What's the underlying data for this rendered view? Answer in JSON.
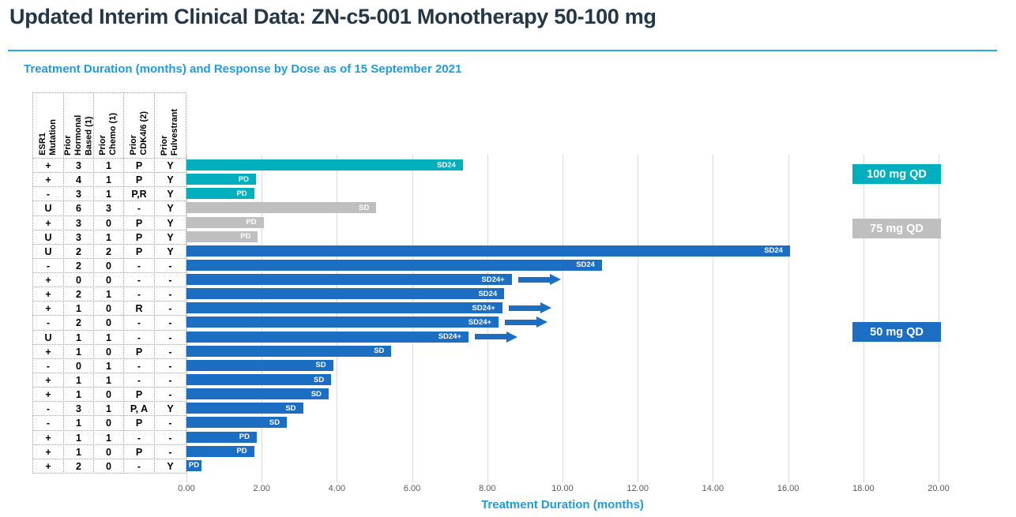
{
  "title": "Updated Interim Clinical Data: ZN-c5-001 Monotherapy 50-100 mg",
  "subtitle": "Treatment Duration (months) and Response by Dose as of 15 September 2021",
  "x_axis": {
    "label": "Treatment Duration (months)",
    "tick_labels": [
      "0.00",
      "2.00",
      "4.00",
      "6.00",
      "8.00",
      "10.00",
      "12.00",
      "14.00",
      "16.00",
      "18.00",
      "20.00"
    ],
    "tick_values": [
      0,
      2,
      4,
      6,
      8,
      10,
      12,
      14,
      16,
      18,
      20
    ]
  },
  "legend": [
    {
      "dose": "100",
      "label": "100 mg QD",
      "color": "#00afbe"
    },
    {
      "dose": "75",
      "label": "75 mg QD",
      "color": "#bfbfbf"
    },
    {
      "dose": "50",
      "label": "50 mg QD",
      "color": "#1b6ec1"
    }
  ],
  "table_headers": [
    "ESR1\nMutation",
    "Prior Hormonal\nBased (1)",
    "Prior\nChemo (1)",
    "Prior\nCDK4/6 (2)",
    "Prior\nFulvestrant"
  ],
  "chart_data": {
    "type": "bar",
    "orientation": "horizontal",
    "title": "Treatment Duration (months) and Response by Dose as of 15 September 2021",
    "xlabel": "Treatment Duration (months)",
    "xlim": [
      0,
      20
    ],
    "grid": true,
    "legend_position": "right",
    "rows": [
      {
        "esr1": "+",
        "hormonal": "3",
        "chemo": "1",
        "cdk46": "P",
        "fulv": "Y",
        "dose": "100",
        "duration": 7.35,
        "response": "SD24",
        "ongoing": false
      },
      {
        "esr1": "+",
        "hormonal": "4",
        "chemo": "1",
        "cdk46": "P",
        "fulv": "Y",
        "dose": "100",
        "duration": 1.85,
        "response": "PD",
        "ongoing": false
      },
      {
        "esr1": "-",
        "hormonal": "3",
        "chemo": "1",
        "cdk46": "P,R",
        "fulv": "Y",
        "dose": "100",
        "duration": 1.8,
        "response": "PD",
        "ongoing": false
      },
      {
        "esr1": "U",
        "hormonal": "6",
        "chemo": "3",
        "cdk46": "-",
        "fulv": "Y",
        "dose": "75",
        "duration": 5.05,
        "response": "SD",
        "ongoing": false
      },
      {
        "esr1": "+",
        "hormonal": "3",
        "chemo": "0",
        "cdk46": "P",
        "fulv": "Y",
        "dose": "75",
        "duration": 2.05,
        "response": "PD",
        "ongoing": false
      },
      {
        "esr1": "U",
        "hormonal": "3",
        "chemo": "1",
        "cdk46": "P",
        "fulv": "Y",
        "dose": "75",
        "duration": 1.9,
        "response": "PD",
        "ongoing": false
      },
      {
        "esr1": "U",
        "hormonal": "2",
        "chemo": "2",
        "cdk46": "P",
        "fulv": "Y",
        "dose": "50",
        "duration": 16.05,
        "response": "SD24",
        "ongoing": false
      },
      {
        "esr1": "-",
        "hormonal": "2",
        "chemo": "0",
        "cdk46": "-",
        "fulv": "-",
        "dose": "50",
        "duration": 11.05,
        "response": "SD24",
        "ongoing": false
      },
      {
        "esr1": "+",
        "hormonal": "0",
        "chemo": "0",
        "cdk46": "-",
        "fulv": "-",
        "dose": "50",
        "duration": 8.65,
        "response": "SD24+",
        "ongoing": true
      },
      {
        "esr1": "+",
        "hormonal": "2",
        "chemo": "1",
        "cdk46": "-",
        "fulv": "-",
        "dose": "50",
        "duration": 8.45,
        "response": "SD24",
        "ongoing": false
      },
      {
        "esr1": "+",
        "hormonal": "1",
        "chemo": "0",
        "cdk46": "R",
        "fulv": "-",
        "dose": "50",
        "duration": 8.4,
        "response": "SD24+",
        "ongoing": true
      },
      {
        "esr1": "-",
        "hormonal": "2",
        "chemo": "0",
        "cdk46": "-",
        "fulv": "-",
        "dose": "50",
        "duration": 8.3,
        "response": "SD24+",
        "ongoing": true
      },
      {
        "esr1": "U",
        "hormonal": "1",
        "chemo": "1",
        "cdk46": "-",
        "fulv": "-",
        "dose": "50",
        "duration": 7.5,
        "response": "SD24+",
        "ongoing": true
      },
      {
        "esr1": "+",
        "hormonal": "1",
        "chemo": "0",
        "cdk46": "P",
        "fulv": "-",
        "dose": "50",
        "duration": 5.45,
        "response": "SD",
        "ongoing": false
      },
      {
        "esr1": "-",
        "hormonal": "0",
        "chemo": "1",
        "cdk46": "-",
        "fulv": "-",
        "dose": "50",
        "duration": 3.9,
        "response": "SD",
        "ongoing": false
      },
      {
        "esr1": "+",
        "hormonal": "1",
        "chemo": "1",
        "cdk46": "-",
        "fulv": "-",
        "dose": "50",
        "duration": 3.85,
        "response": "SD",
        "ongoing": false
      },
      {
        "esr1": "+",
        "hormonal": "1",
        "chemo": "0",
        "cdk46": "P",
        "fulv": "-",
        "dose": "50",
        "duration": 3.78,
        "response": "SD",
        "ongoing": false
      },
      {
        "esr1": "-",
        "hormonal": "3",
        "chemo": "1",
        "cdk46": "P, A",
        "fulv": "Y",
        "dose": "50",
        "duration": 3.1,
        "response": "SD",
        "ongoing": false
      },
      {
        "esr1": "-",
        "hormonal": "1",
        "chemo": "0",
        "cdk46": "P",
        "fulv": "-",
        "dose": "50",
        "duration": 2.67,
        "response": "SD",
        "ongoing": false
      },
      {
        "esr1": "+",
        "hormonal": "1",
        "chemo": "1",
        "cdk46": "-",
        "fulv": "-",
        "dose": "50",
        "duration": 1.87,
        "response": "PD",
        "ongoing": false
      },
      {
        "esr1": "+",
        "hormonal": "1",
        "chemo": "0",
        "cdk46": "P",
        "fulv": "-",
        "dose": "50",
        "duration": 1.8,
        "response": "PD",
        "ongoing": false
      },
      {
        "esr1": "+",
        "hormonal": "2",
        "chemo": "0",
        "cdk46": "-",
        "fulv": "Y",
        "dose": "50",
        "duration": 0.4,
        "response": "PD",
        "ongoing": false
      }
    ]
  }
}
